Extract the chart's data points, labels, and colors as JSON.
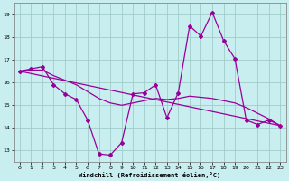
{
  "xlabel": "Windchill (Refroidissement éolien,°C)",
  "background_color": "#c8eef0",
  "grid_color": "#a0ccc8",
  "line_color": "#990099",
  "xlim": [
    -0.5,
    23.5
  ],
  "ylim": [
    12.5,
    19.5
  ],
  "yticks": [
    13,
    14,
    15,
    16,
    17,
    18,
    19
  ],
  "xticks": [
    0,
    1,
    2,
    3,
    4,
    5,
    6,
    7,
    8,
    9,
    10,
    11,
    12,
    13,
    14,
    15,
    16,
    17,
    18,
    19,
    20,
    21,
    22,
    23
  ],
  "zigzag_x": [
    0,
    1,
    2,
    3,
    4,
    5,
    6,
    7,
    8,
    9,
    10,
    11,
    12,
    13,
    14,
    15,
    16,
    17,
    18,
    19,
    20,
    21,
    22,
    23
  ],
  "zigzag_y": [
    16.5,
    16.6,
    16.7,
    15.9,
    15.5,
    15.25,
    14.35,
    12.85,
    12.8,
    13.35,
    15.5,
    15.55,
    15.9,
    14.45,
    15.55,
    18.5,
    18.05,
    19.1,
    17.85,
    17.05,
    14.35,
    14.15,
    14.35,
    14.1
  ],
  "trend_x": [
    0,
    23
  ],
  "trend_y": [
    16.5,
    14.1
  ],
  "mid_x": [
    0,
    1,
    2,
    3,
    4,
    5,
    6,
    7,
    8,
    9,
    10,
    11,
    12,
    13,
    14,
    15,
    16,
    17,
    18,
    19,
    20,
    21,
    22,
    23
  ],
  "mid_y": [
    16.5,
    16.55,
    16.55,
    16.3,
    16.1,
    15.9,
    15.6,
    15.3,
    15.1,
    15.0,
    15.1,
    15.2,
    15.3,
    15.25,
    15.3,
    15.4,
    15.35,
    15.3,
    15.2,
    15.1,
    14.9,
    14.65,
    14.4,
    14.1
  ]
}
